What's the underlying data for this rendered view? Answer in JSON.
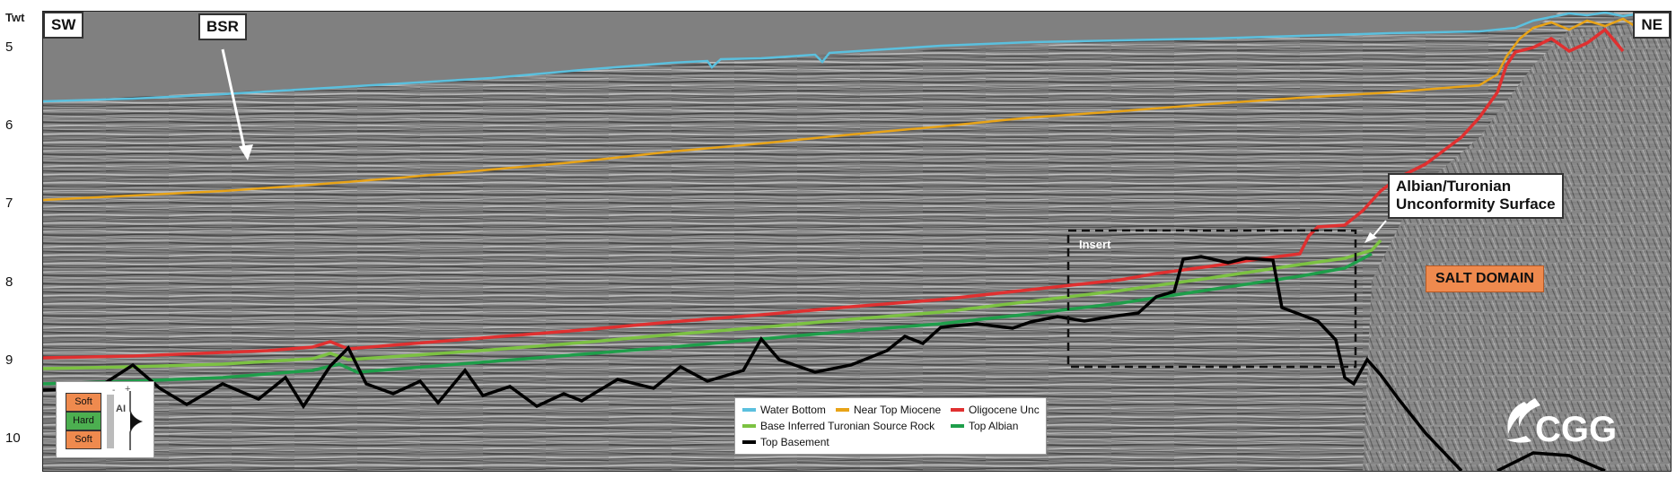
{
  "axis": {
    "title": "Twt",
    "ticks": [
      "5",
      "6",
      "7",
      "8",
      "9",
      "10"
    ]
  },
  "labels": {
    "sw": "SW",
    "ne": "NE",
    "bsr": "BSR",
    "albian_line1": "Albian/Turonian",
    "albian_line2": "Unconformity Surface",
    "salt": "SALT DOMAIN",
    "insert": "Insert"
  },
  "legend": {
    "items": [
      {
        "label": "Water Bottom",
        "color": "#5bc0de"
      },
      {
        "label": "Near Top Miocene",
        "color": "#e8a317"
      },
      {
        "label": "Oligocene Unc",
        "color": "#e03030"
      },
      {
        "label": "Base Inferred Turonian Source Rock",
        "color": "#7cc242"
      },
      {
        "label": "Top Albian",
        "color": "#1e9e4a"
      },
      {
        "label": "Top Basement",
        "color": "#000000"
      }
    ]
  },
  "ai_key": {
    "labels": [
      "Soft",
      "Hard",
      "Soft"
    ],
    "ai_label": "AI",
    "minus": "-",
    "plus": "+",
    "colors": {
      "soft": "#ef8a4e",
      "hard": "#4caf50"
    }
  },
  "logo": {
    "text": "CGG"
  }
}
